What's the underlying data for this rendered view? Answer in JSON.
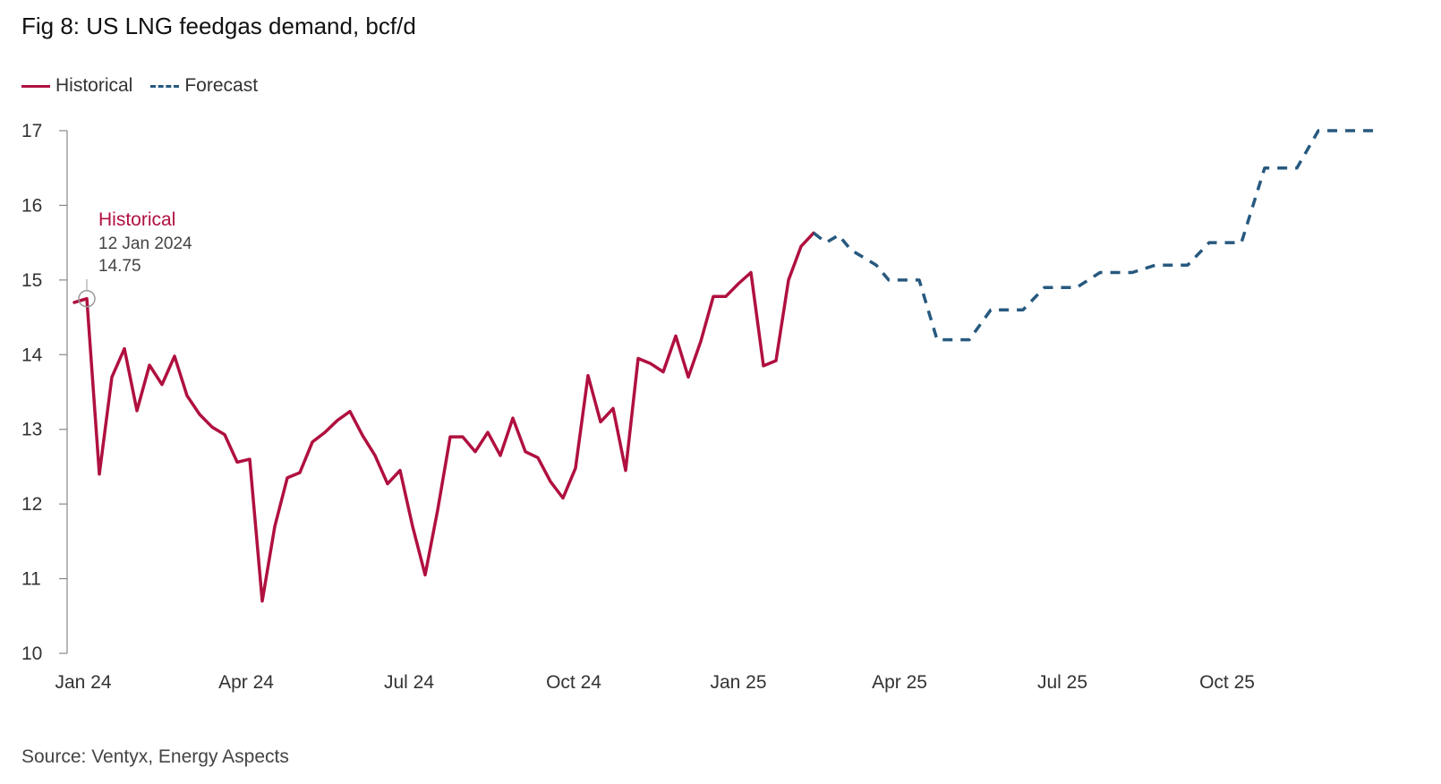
{
  "chart_data": {
    "type": "line",
    "title": "Fig 8: US LNG feedgas demand, bcf/d",
    "xlabel": "",
    "ylabel": "",
    "ylim": [
      10,
      17
    ],
    "yticks": [
      10,
      11,
      12,
      13,
      14,
      15,
      16,
      17
    ],
    "x_range": [
      "2024-01-01",
      "2025-12-31"
    ],
    "xticks": [
      {
        "label": "Jan 24",
        "date": "2024-01-01"
      },
      {
        "label": "Apr 24",
        "date": "2024-04-01"
      },
      {
        "label": "Jul 24",
        "date": "2024-07-01"
      },
      {
        "label": "Oct 24",
        "date": "2024-10-01"
      },
      {
        "label": "Jan 25",
        "date": "2025-01-01"
      },
      {
        "label": "Apr 25",
        "date": "2025-04-01"
      },
      {
        "label": "Jul 25",
        "date": "2025-07-01"
      },
      {
        "label": "Oct 25",
        "date": "2025-10-01"
      }
    ],
    "legend": {
      "position": "top-left",
      "entries": [
        "Historical",
        "Forecast"
      ]
    },
    "series": [
      {
        "name": "Historical",
        "color": "#b0103f",
        "style": "solid",
        "points": [
          [
            "2024-01-05",
            14.7
          ],
          [
            "2024-01-12",
            14.75
          ],
          [
            "2024-01-19",
            12.4
          ],
          [
            "2024-01-26",
            13.7
          ],
          [
            "2024-02-02",
            14.08
          ],
          [
            "2024-02-09",
            13.25
          ],
          [
            "2024-02-16",
            13.86
          ],
          [
            "2024-02-23",
            13.6
          ],
          [
            "2024-03-01",
            13.98
          ],
          [
            "2024-03-08",
            13.45
          ],
          [
            "2024-03-15",
            13.2
          ],
          [
            "2024-03-22",
            13.03
          ],
          [
            "2024-03-29",
            12.93
          ],
          [
            "2024-04-05",
            12.56
          ],
          [
            "2024-04-12",
            12.6
          ],
          [
            "2024-04-19",
            10.7
          ],
          [
            "2024-04-26",
            11.7
          ],
          [
            "2024-05-03",
            12.35
          ],
          [
            "2024-05-10",
            12.42
          ],
          [
            "2024-05-17",
            12.83
          ],
          [
            "2024-05-24",
            12.96
          ],
          [
            "2024-05-31",
            13.12
          ],
          [
            "2024-06-07",
            13.24
          ],
          [
            "2024-06-14",
            12.92
          ],
          [
            "2024-06-21",
            12.65
          ],
          [
            "2024-06-28",
            12.27
          ],
          [
            "2024-07-05",
            12.45
          ],
          [
            "2024-07-12",
            11.7
          ],
          [
            "2024-07-19",
            11.05
          ],
          [
            "2024-07-26",
            11.92
          ],
          [
            "2024-08-02",
            12.9
          ],
          [
            "2024-08-09",
            12.9
          ],
          [
            "2024-08-16",
            12.7
          ],
          [
            "2024-08-23",
            12.96
          ],
          [
            "2024-08-30",
            12.65
          ],
          [
            "2024-09-06",
            13.15
          ],
          [
            "2024-09-13",
            12.7
          ],
          [
            "2024-09-20",
            12.62
          ],
          [
            "2024-09-27",
            12.3
          ],
          [
            "2024-10-04",
            12.08
          ],
          [
            "2024-10-11",
            12.48
          ],
          [
            "2024-10-18",
            13.72
          ],
          [
            "2024-10-25",
            13.1
          ],
          [
            "2024-11-01",
            13.28
          ],
          [
            "2024-11-08",
            12.45
          ],
          [
            "2024-11-15",
            13.95
          ],
          [
            "2024-11-22",
            13.88
          ],
          [
            "2024-11-29",
            13.77
          ],
          [
            "2024-12-06",
            14.25
          ],
          [
            "2024-12-13",
            13.7
          ],
          [
            "2024-12-20",
            14.18
          ],
          [
            "2024-12-27",
            14.78
          ],
          [
            "2025-01-03",
            14.78
          ],
          [
            "2025-01-10",
            14.95
          ],
          [
            "2025-01-17",
            15.1
          ],
          [
            "2025-01-24",
            13.85
          ],
          [
            "2025-01-31",
            13.92
          ],
          [
            "2025-02-07",
            15.0
          ],
          [
            "2025-02-14",
            15.45
          ],
          [
            "2025-02-21",
            15.63
          ]
        ]
      },
      {
        "name": "Forecast",
        "color": "#27597f",
        "style": "dashed",
        "points": [
          [
            "2025-02-21",
            15.63
          ],
          [
            "2025-02-28",
            15.5
          ],
          [
            "2025-03-07",
            15.6
          ],
          [
            "2025-03-14",
            15.4
          ],
          [
            "2025-03-21",
            15.3
          ],
          [
            "2025-03-28",
            15.2
          ],
          [
            "2025-04-04",
            15.0
          ],
          [
            "2025-04-11",
            15.0
          ],
          [
            "2025-04-21",
            15.0
          ],
          [
            "2025-05-01",
            14.2
          ],
          [
            "2025-05-10",
            14.2
          ],
          [
            "2025-05-19",
            14.2
          ],
          [
            "2025-05-31",
            14.6
          ],
          [
            "2025-06-09",
            14.6
          ],
          [
            "2025-06-18",
            14.6
          ],
          [
            "2025-06-30",
            14.9
          ],
          [
            "2025-07-09",
            14.9
          ],
          [
            "2025-07-18",
            14.9
          ],
          [
            "2025-07-31",
            15.1
          ],
          [
            "2025-08-09",
            15.1
          ],
          [
            "2025-08-18",
            15.1
          ],
          [
            "2025-08-31",
            15.2
          ],
          [
            "2025-09-09",
            15.2
          ],
          [
            "2025-09-18",
            15.2
          ],
          [
            "2025-09-30",
            15.5
          ],
          [
            "2025-10-09",
            15.5
          ],
          [
            "2025-10-18",
            15.5
          ],
          [
            "2025-10-31",
            16.5
          ],
          [
            "2025-11-09",
            16.5
          ],
          [
            "2025-11-18",
            16.5
          ],
          [
            "2025-11-30",
            17.0
          ],
          [
            "2025-12-09",
            17.0
          ],
          [
            "2025-12-18",
            17.0
          ],
          [
            "2025-12-31",
            17.0
          ]
        ]
      }
    ],
    "annotation": {
      "series": "Historical",
      "date": "2024-01-12",
      "value": 14.75,
      "title": "Historical",
      "date_label": "12 Jan 2024",
      "value_label": "14.75"
    }
  },
  "source": "Source: Ventyx, Energy Aspects",
  "colors": {
    "historical": "#b0103f",
    "forecast": "#27597f",
    "axis": "#888888"
  }
}
